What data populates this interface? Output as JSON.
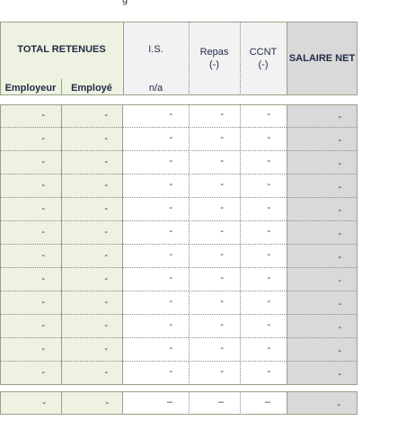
{
  "header": {
    "total_retenues": "TOTAL RETENUES",
    "employeur": "Employeur",
    "employe": "Employé",
    "is_label": "I.S.",
    "is_sub": "n/a",
    "repas_label": "Repas",
    "repas_sub": "(-)",
    "ccnt_label": "CCNT",
    "ccnt_sub": "(-)",
    "salaire_net": "SALAIRE NET"
  },
  "rows": [
    {
      "employeur": "-",
      "employe": "-",
      "is": "-",
      "repas": "-",
      "ccnt": "-",
      "net": "-"
    },
    {
      "employeur": "-",
      "employe": "-",
      "is": "-",
      "repas": "-",
      "ccnt": "-",
      "net": "-"
    },
    {
      "employeur": "-",
      "employe": "-",
      "is": "-",
      "repas": "-",
      "ccnt": "-",
      "net": "-"
    },
    {
      "employeur": "-",
      "employe": "-",
      "is": "-",
      "repas": "-",
      "ccnt": "-",
      "net": "-"
    },
    {
      "employeur": "-",
      "employe": "-",
      "is": "-",
      "repas": "-",
      "ccnt": "-",
      "net": "-"
    },
    {
      "employeur": "-",
      "employe": "-",
      "is": "-",
      "repas": "-",
      "ccnt": "-",
      "net": "-"
    },
    {
      "employeur": "-",
      "employe": "-",
      "is": "-",
      "repas": "-",
      "ccnt": "-",
      "net": "-"
    },
    {
      "employeur": "-",
      "employe": "-",
      "is": "-",
      "repas": "-",
      "ccnt": "-",
      "net": "-"
    },
    {
      "employeur": "-",
      "employe": "-",
      "is": "-",
      "repas": "-",
      "ccnt": "-",
      "net": "-"
    },
    {
      "employeur": "-",
      "employe": "-",
      "is": "-",
      "repas": "-",
      "ccnt": "-",
      "net": "-"
    },
    {
      "employeur": "-",
      "employe": "-",
      "is": "-",
      "repas": "-",
      "ccnt": "-",
      "net": "-"
    },
    {
      "employeur": "-",
      "employe": "-",
      "is": "-",
      "repas": "-",
      "ccnt": "-",
      "net": "-"
    }
  ],
  "total_row": {
    "employeur": "-",
    "employe": "-",
    "is": "–",
    "repas": "–",
    "ccnt": "–",
    "net": "-"
  }
}
